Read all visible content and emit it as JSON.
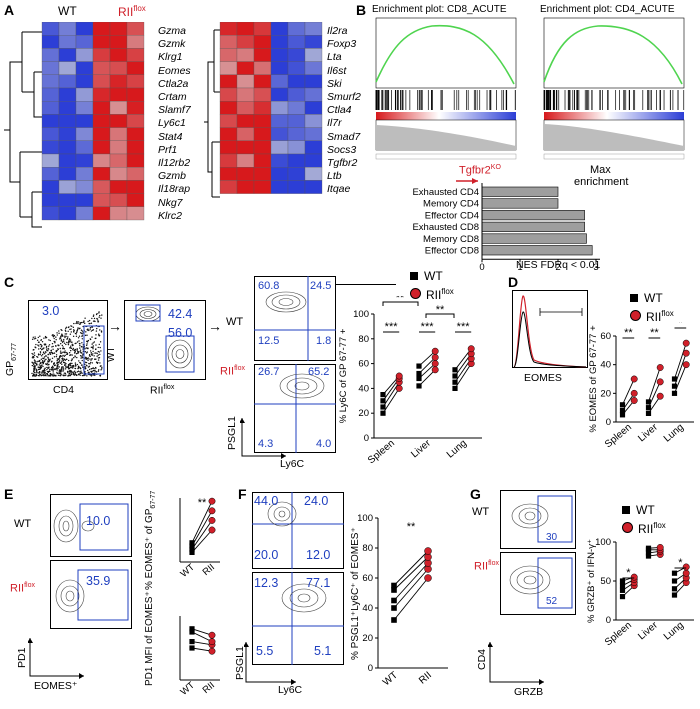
{
  "panels": {
    "A": {
      "label": "A",
      "wt": "WT",
      "rii": "RII",
      "rii_sup": "flox",
      "genes_left": [
        "Gzma",
        "Gzmk",
        "Klrg1",
        "Eomes",
        "Ctla2a",
        "Crtam",
        "Slamf7",
        "Ly6c1",
        "Stat4",
        "Prf1",
        "Il12rb2",
        "Gzmb",
        "Il18rap",
        "Nkg7",
        "Klrc2"
      ],
      "genes_right": [
        "Il2ra",
        "Foxp3",
        "Lta",
        "Il6st",
        "Ski",
        "Smurf2",
        "Ctla4",
        "Il7r",
        "Smad7",
        "Socs3",
        "Tgfbr2",
        "Ltb",
        "Itqae"
      ]
    },
    "B": {
      "label": "B",
      "plot1_title": "Enrichment plot: CD8_ACUTE",
      "plot2_title": "Enrichment plot: CD4_ACUTE",
      "tgfbr2_label": "Tgfbr2",
      "tgfbr2_sup": "KO",
      "max_label": "Max",
      "enrichment_label": "enrichment",
      "nes_label": "NES FDRq < 0.01",
      "bar_categories": [
        "Exhausted CD4",
        "Memory CD4",
        "Effector CD4",
        "Exhausted CD8",
        "Memory CD8",
        "Effector CD8"
      ],
      "bar_values": [
        2.0,
        2.0,
        2.7,
        2.7,
        2.75,
        2.9
      ],
      "x_ticks": [
        "0",
        "1",
        "2",
        "3"
      ]
    },
    "C": {
      "label": "C",
      "gp_label": "GP",
      "gp_sub": "67-77",
      "cd4_label": "CD4",
      "wt_label": "WT",
      "rii_label": "RII",
      "rii_sup": "flox",
      "gate_gp": "3.0",
      "gate_wt": "42.4",
      "gate_rii": "56.0",
      "wt_quads": [
        "60.8",
        "24.5",
        "12.5",
        "1.8"
      ],
      "rii_quads": [
        "26.7",
        "65.2",
        "4.3",
        "4.0"
      ],
      "psgl1": "PSGL1",
      "ly6c": "Ly6C",
      "ylabel": "% Ly6C of GP",
      "ylabel_sub": "67-77",
      "ylabel_sup": "+",
      "categories": [
        "Spleen",
        "Liver",
        "Lung"
      ],
      "yticks": [
        "0",
        "20",
        "40",
        "60",
        "80",
        "100"
      ],
      "sig_stars": [
        "***",
        "***",
        "***"
      ],
      "bracket_stars": [
        "**",
        "**"
      ]
    },
    "D": {
      "label": "D",
      "eomes": "EOMES",
      "ylabel": "% EOMES of GP",
      "ylabel_sub": "67-77",
      "ylabel_sup": "+",
      "categories": [
        "Spleen",
        "Liver",
        "Lung"
      ],
      "yticks": [
        "0",
        "20",
        "40",
        "60"
      ],
      "sig_stars": [
        "**",
        "**",
        "*"
      ]
    },
    "E": {
      "label": "E",
      "wt_label": "WT",
      "rii_label": "RII",
      "rii_sup": "flox",
      "gate_wt": "10.0",
      "gate_rii": "35.9",
      "pd1": "PD1",
      "eomes": "EOMES⁺",
      "ylabel_top": "% EOMES⁺ of GP",
      "ylabel_top_sub": "67-77",
      "ylabel_bot": "PD1 MFI of EOMES⁺",
      "stars": "**",
      "x_wt": "WT",
      "x_rii": "RII"
    },
    "F": {
      "label": "F",
      "wt_quads": [
        "44.0",
        "24.0",
        "20.0",
        "12.0"
      ],
      "rii_quads": [
        "12.3",
        "77.1",
        "5.5",
        "5.1"
      ],
      "psgl1": "PSGL1",
      "ly6c": "Ly6C",
      "ylabel": "% PSGL1⁺Ly6C⁺ of EOMES⁺",
      "yticks": [
        "0",
        "20",
        "40",
        "60",
        "80",
        "100"
      ],
      "stars": "**",
      "x_wt": "WT",
      "x_rii": "RII"
    },
    "G": {
      "label": "G",
      "wt_label": "WT",
      "rii_label": "RII",
      "rii_sup": "flox",
      "gate_wt": "30",
      "gate_rii": "52",
      "cd4": "CD4",
      "grzb": "GRZB",
      "ylabel": "% GRZB⁺ of IFN-γ⁺",
      "categories": [
        "Spleen",
        "Liver",
        "Lung"
      ],
      "yticks": [
        "0",
        "50",
        "100"
      ],
      "sig_stars": [
        "*",
        "*"
      ]
    }
  },
  "legend": {
    "wt": "WT",
    "rii": "RII",
    "rii_sup": "flox"
  },
  "colors": {
    "red": "#d0202a",
    "blue": "#1f3fbf",
    "heat_red": "#d7191c",
    "heat_blue": "#2c3ed6",
    "gsea_green": "#4fd44f"
  }
}
